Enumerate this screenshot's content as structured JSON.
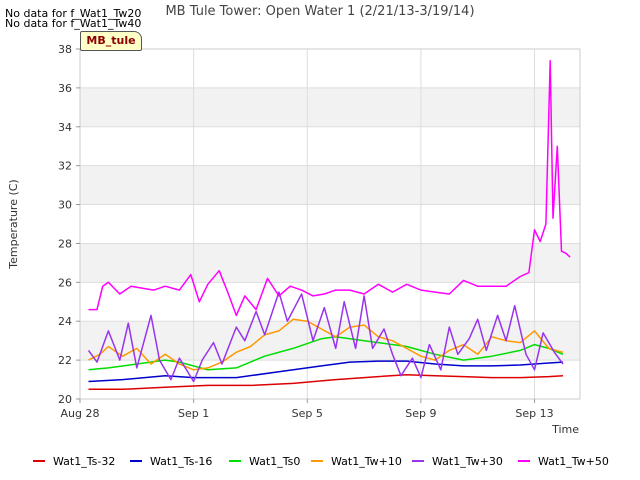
{
  "no_data_messages": [
    "No data for f_Wat1_Tw20",
    "No data for f_Wat1_Tw40"
  ],
  "site_badge": "MB_tule",
  "chart_data": {
    "type": "line",
    "title": "MB Tule Tower: Open Water 1 (2/21/13-3/19/14)",
    "xlabel": "Time",
    "ylabel": "Temperature (C)",
    "xlim": [
      0,
      17.6
    ],
    "ylim": [
      20,
      38
    ],
    "x_unit": "days since Aug 28",
    "x_ticks": [
      {
        "value": 0,
        "label": "Aug 28"
      },
      {
        "value": 4,
        "label": "Sep 1"
      },
      {
        "value": 8,
        "label": "Sep 5"
      },
      {
        "value": 12,
        "label": "Sep 9"
      },
      {
        "value": 16,
        "label": "Sep 13"
      }
    ],
    "y_ticks": [
      20,
      22,
      24,
      26,
      28,
      30,
      32,
      34,
      36,
      38
    ],
    "grid": true,
    "legend_position": "bottom",
    "series": [
      {
        "name": "Wat1_Ts-32",
        "color": "#dd0000",
        "x": [
          0.3,
          1.5,
          3.0,
          4.5,
          6.0,
          7.5,
          9.0,
          10.5,
          11.5,
          12.5,
          13.5,
          14.5,
          15.5,
          16.5,
          17.0
        ],
        "y": [
          20.5,
          20.5,
          20.6,
          20.7,
          20.7,
          20.8,
          21.0,
          21.15,
          21.25,
          21.2,
          21.15,
          21.1,
          21.1,
          21.15,
          21.2
        ]
      },
      {
        "name": "Wat1_Ts-16",
        "color": "#0000cc",
        "x": [
          0.3,
          1.5,
          3.0,
          4.0,
          5.5,
          7.0,
          8.5,
          9.5,
          10.5,
          11.5,
          12.5,
          13.5,
          14.5,
          15.5,
          16.5,
          17.0
        ],
        "y": [
          20.9,
          21.0,
          21.2,
          21.1,
          21.1,
          21.4,
          21.7,
          21.9,
          21.95,
          21.95,
          21.8,
          21.7,
          21.7,
          21.75,
          21.85,
          21.9
        ]
      },
      {
        "name": "Wat1_Ts0",
        "color": "#00dd00",
        "x": [
          0.3,
          1.0,
          2.0,
          3.0,
          3.5,
          4.5,
          5.5,
          6.5,
          7.5,
          8.5,
          9.0,
          10.0,
          10.5,
          11.5,
          12.5,
          13.5,
          14.5,
          15.5,
          16.0,
          16.5,
          17.0
        ],
        "y": [
          21.5,
          21.6,
          21.8,
          22.0,
          21.9,
          21.5,
          21.6,
          22.2,
          22.6,
          23.1,
          23.2,
          23.0,
          22.9,
          22.7,
          22.3,
          22.0,
          22.2,
          22.5,
          22.8,
          22.6,
          22.3
        ]
      },
      {
        "name": "Wat1_Tw+10",
        "color": "#ff9900",
        "x": [
          0.3,
          0.7,
          1.0,
          1.5,
          2.0,
          2.5,
          3.0,
          3.5,
          4.0,
          4.5,
          5.0,
          5.5,
          6.0,
          6.5,
          7.0,
          7.5,
          8.0,
          8.5,
          9.0,
          9.5,
          10.0,
          10.5,
          11.0,
          11.5,
          12.0,
          12.5,
          13.0,
          13.5,
          14.0,
          14.5,
          15.0,
          15.5,
          16.0,
          16.5,
          17.0
        ],
        "y": [
          22.0,
          22.3,
          22.7,
          22.2,
          22.6,
          21.8,
          22.3,
          21.8,
          21.5,
          21.6,
          21.9,
          22.4,
          22.7,
          23.3,
          23.5,
          24.1,
          24.0,
          23.6,
          23.2,
          23.7,
          23.8,
          23.2,
          23.0,
          22.6,
          22.2,
          22.0,
          22.5,
          22.8,
          22.3,
          23.2,
          23.0,
          22.9,
          23.5,
          22.6,
          22.4
        ]
      },
      {
        "name": "Wat1_Tw+30",
        "color": "#9933ee",
        "x": [
          0.3,
          0.6,
          1.0,
          1.4,
          1.7,
          2.0,
          2.5,
          2.8,
          3.2,
          3.5,
          4.0,
          4.3,
          4.7,
          5.0,
          5.5,
          5.8,
          6.2,
          6.5,
          7.0,
          7.3,
          7.8,
          8.2,
          8.6,
          9.0,
          9.3,
          9.7,
          10.0,
          10.3,
          10.7,
          11.0,
          11.3,
          11.7,
          12.0,
          12.3,
          12.7,
          13.0,
          13.3,
          13.7,
          14.0,
          14.3,
          14.7,
          15.0,
          15.3,
          15.7,
          16.0,
          16.3,
          16.7,
          17.0
        ],
        "y": [
          22.5,
          21.9,
          23.5,
          22.0,
          23.9,
          21.6,
          24.3,
          22.0,
          21.0,
          22.1,
          20.9,
          22.0,
          22.9,
          21.8,
          23.7,
          23.0,
          24.5,
          23.3,
          25.5,
          24.0,
          25.4,
          23.0,
          24.7,
          22.6,
          25.0,
          22.6,
          25.3,
          22.6,
          23.6,
          22.3,
          21.2,
          22.1,
          21.1,
          22.8,
          21.5,
          23.7,
          22.3,
          23.1,
          24.1,
          22.5,
          24.3,
          23.0,
          24.8,
          22.3,
          21.5,
          23.4,
          22.4,
          21.8
        ]
      },
      {
        "name": "Wat1_Tw+50",
        "color": "#ff00ff",
        "x": [
          0.3,
          0.6,
          0.8,
          1.0,
          1.4,
          1.8,
          2.2,
          2.6,
          3.0,
          3.5,
          3.9,
          4.2,
          4.5,
          4.9,
          5.2,
          5.5,
          5.8,
          6.2,
          6.6,
          7.0,
          7.4,
          7.8,
          8.2,
          8.6,
          9.0,
          9.5,
          10.0,
          10.5,
          11.0,
          11.5,
          12.0,
          12.5,
          13.0,
          13.5,
          14.0,
          14.5,
          15.0,
          15.5,
          15.8,
          16.0,
          16.2,
          16.4,
          16.55,
          16.65,
          16.8,
          16.95,
          17.1,
          17.25
        ],
        "y": [
          24.6,
          24.6,
          25.8,
          26.0,
          25.4,
          25.8,
          25.7,
          25.6,
          25.8,
          25.6,
          26.4,
          25.0,
          25.9,
          26.6,
          25.5,
          24.3,
          25.3,
          24.6,
          26.2,
          25.3,
          25.8,
          25.6,
          25.3,
          25.4,
          25.6,
          25.6,
          25.4,
          25.9,
          25.5,
          25.9,
          25.6,
          25.5,
          25.4,
          26.1,
          25.8,
          25.8,
          25.8,
          26.3,
          26.5,
          28.7,
          28.1,
          29.0,
          37.4,
          29.3,
          33.0,
          27.6,
          27.5,
          27.3
        ]
      }
    ]
  }
}
